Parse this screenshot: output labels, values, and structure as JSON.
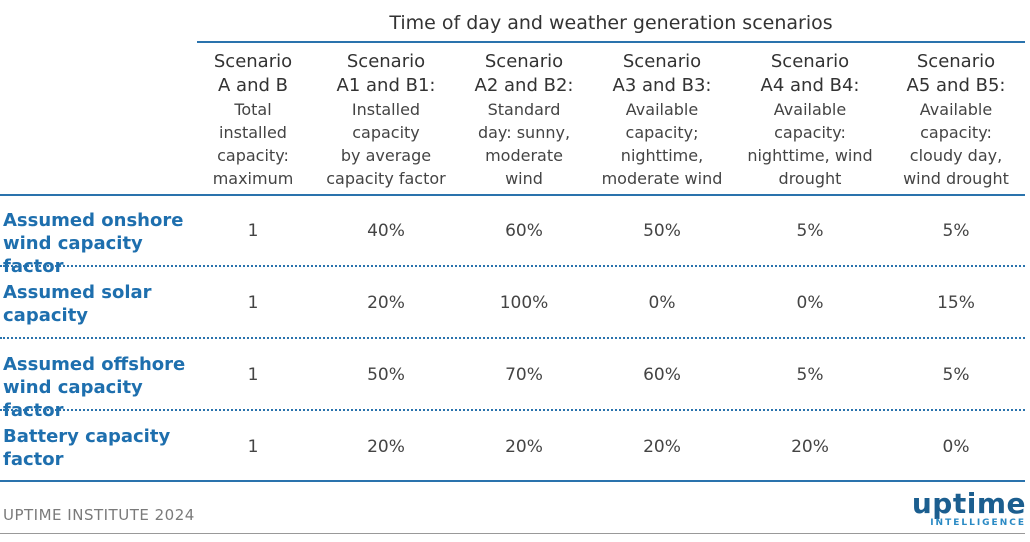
{
  "super_title": "Time of day and weather generation scenarios",
  "columns": [
    {
      "title": "Scenario A and B",
      "title_lines": [
        "Scenario",
        "A and B"
      ],
      "desc_lines": [
        "Total",
        "installed",
        "capacity:",
        "maximum"
      ]
    },
    {
      "title": "Scenario A1 and B1:",
      "title_lines": [
        "Scenario",
        "A1 and B1:"
      ],
      "desc_lines": [
        "Installed",
        "capacity",
        "by average",
        "capacity factor"
      ]
    },
    {
      "title": "Scenario A2 and B2:",
      "title_lines": [
        "Scenario",
        "A2 and B2:"
      ],
      "desc_lines": [
        "Standard",
        "day: sunny,",
        "moderate",
        "wind"
      ]
    },
    {
      "title": "Scenario A3 and B3:",
      "title_lines": [
        "Scenario",
        "A3 and B3:"
      ],
      "desc_lines": [
        "Available",
        "capacity;",
        "nighttime,",
        "moderate wind"
      ]
    },
    {
      "title": "Scenario A4 and B4:",
      "title_lines": [
        "Scenario",
        "A4 and B4:"
      ],
      "desc_lines": [
        "Available",
        "capacity:",
        "nighttime, wind",
        "drought"
      ]
    },
    {
      "title": "Scenario A5 and B5:",
      "title_lines": [
        "Scenario",
        "A5 and B5:"
      ],
      "desc_lines": [
        "Available",
        "capacity:",
        "cloudy day,",
        "wind drought"
      ]
    }
  ],
  "rows": [
    {
      "label_lines": [
        "Assumed onshore",
        "wind capacity factor"
      ],
      "values": [
        "1",
        "40%",
        "60%",
        "50%",
        "5%",
        "5%"
      ]
    },
    {
      "label_lines": [
        "Assumed solar",
        "capacity"
      ],
      "values": [
        "1",
        "20%",
        "100%",
        "0%",
        "0%",
        "15%"
      ]
    },
    {
      "label_lines": [
        "Assumed offshore",
        "wind capacity factor"
      ],
      "values": [
        "1",
        "50%",
        "70%",
        "60%",
        "5%",
        "5%"
      ]
    },
    {
      "label_lines": [
        "Battery capacity",
        "factor"
      ],
      "values": [
        "1",
        "20%",
        "20%",
        "20%",
        "20%",
        "0%"
      ]
    }
  ],
  "footer": {
    "source": "UPTIME INSTITUTE 2024"
  },
  "logo": {
    "word": "uptime",
    "sub": "INTELLIGENCE"
  },
  "colors": {
    "accent": "#1e6fae",
    "rule": "#2a73ad",
    "text": "#444444",
    "footer": "#7a7a7a"
  }
}
